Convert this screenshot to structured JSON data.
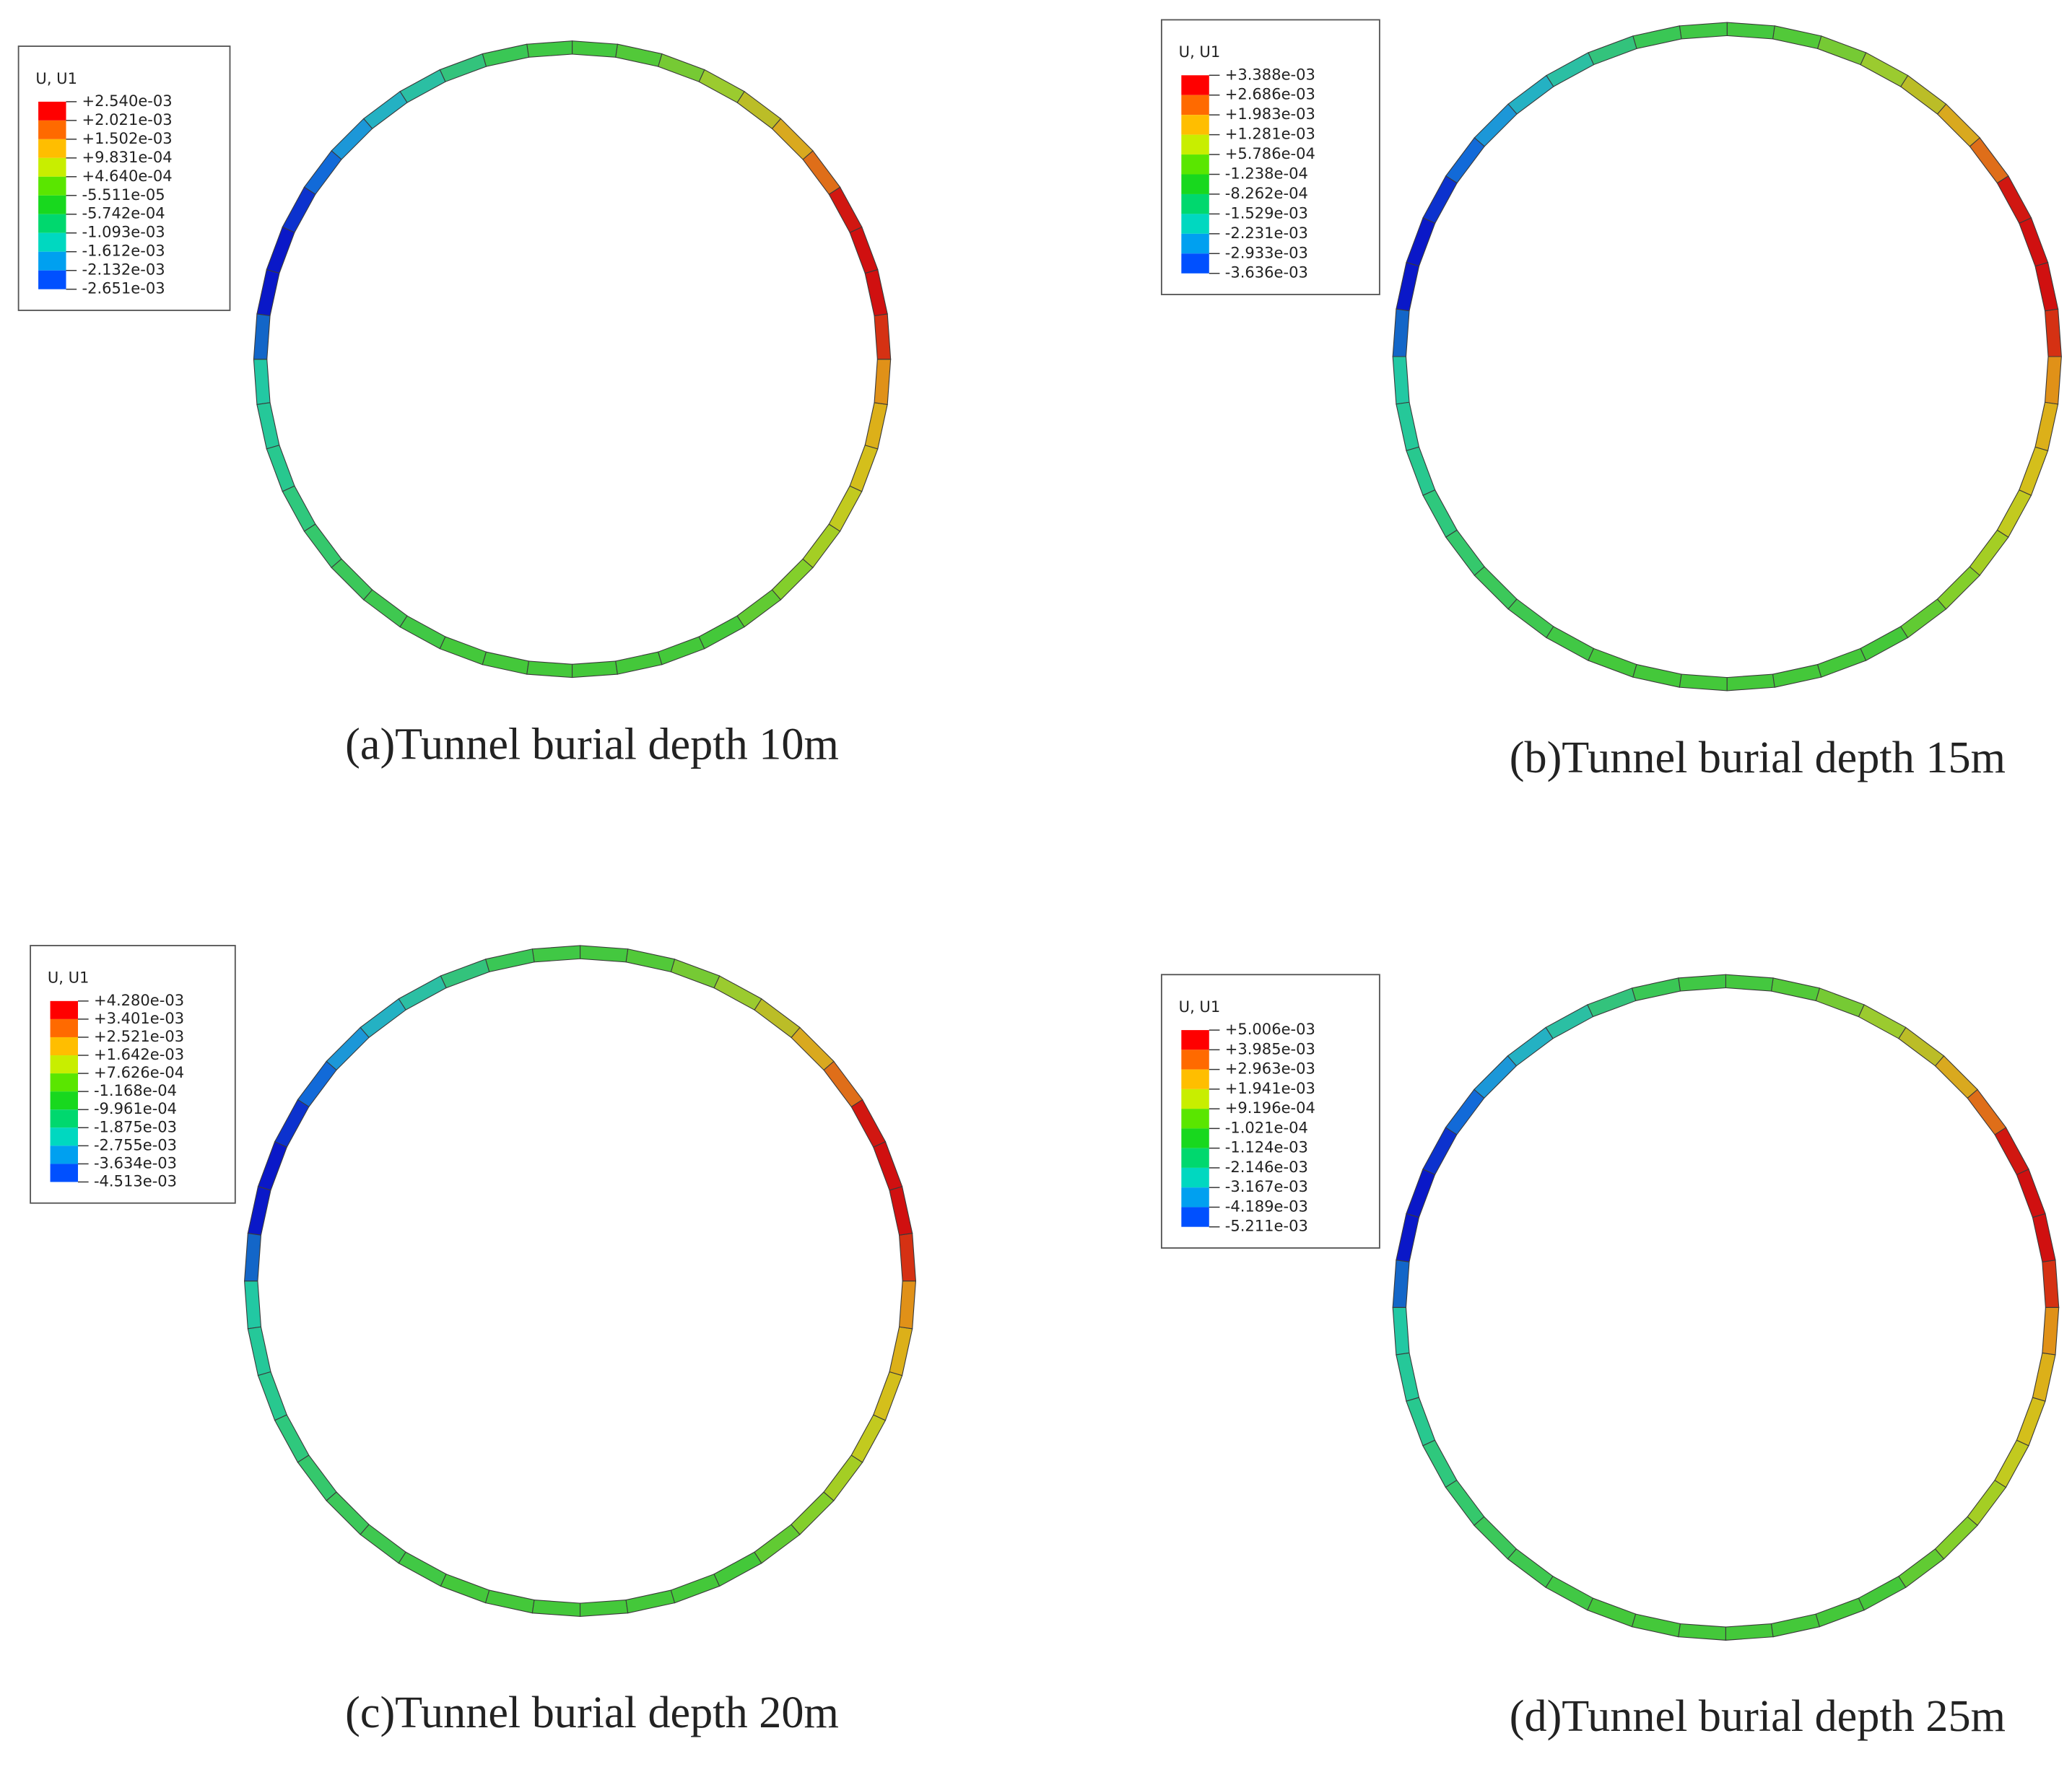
{
  "panels": [
    {
      "legend_title": "U, U1",
      "legend_labels": [
        "+2.540e-03",
        "+2.021e-03",
        "+1.502e-03",
        "+9.831e-04",
        "+4.640e-04",
        "-5.511e-05",
        "-5.742e-04",
        "-1.093e-03",
        "-1.612e-03",
        "-2.132e-03",
        "-2.651e-03"
      ],
      "caption": "(a)Tunnel burial depth 10m"
    },
    {
      "legend_title": "U, U1",
      "legend_labels": [
        "+3.388e-03",
        "+2.686e-03",
        "+1.983e-03",
        "+1.281e-03",
        "+5.786e-04",
        "-1.238e-04",
        "-8.262e-04",
        "-1.529e-03",
        "-2.231e-03",
        "-2.933e-03",
        "-3.636e-03"
      ],
      "caption": "(b)Tunnel burial depth 15m"
    },
    {
      "legend_title": "U, U1",
      "legend_labels": [
        "+4.280e-03",
        "+3.401e-03",
        "+2.521e-03",
        "+1.642e-03",
        "+7.626e-04",
        "-1.168e-04",
        "-9.961e-04",
        "-1.875e-03",
        "-2.755e-03",
        "-3.634e-03",
        "-4.513e-03"
      ],
      "caption": "(c)Tunnel burial depth 20m"
    },
    {
      "legend_title": "U, U1",
      "legend_labels": [
        "+5.006e-03",
        "+3.985e-03",
        "+2.963e-03",
        "+1.941e-03",
        "+9.196e-04",
        "-1.021e-04",
        "-1.124e-03",
        "-2.146e-03",
        "-3.167e-03",
        "-4.189e-03",
        "-5.211e-03"
      ],
      "caption": "(d)Tunnel burial depth 25m"
    }
  ]
}
